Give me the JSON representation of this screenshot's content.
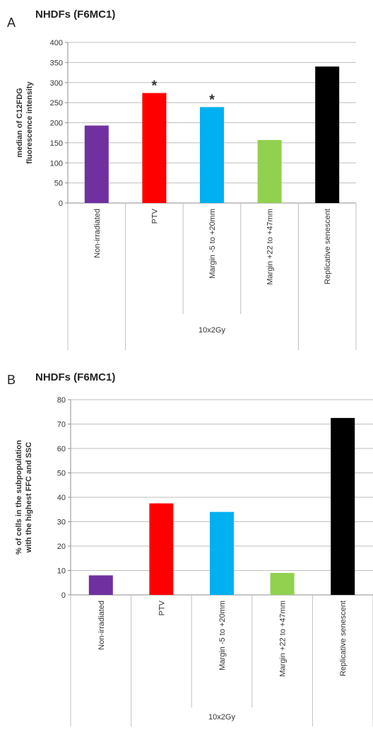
{
  "chart_data": [
    {
      "type": "bar",
      "panel_label": "A",
      "title": "NHDFs (F6MC1)",
      "ylabel": "median of C12FDG fluorescence intensity",
      "xlabel": "",
      "ylim": [
        0,
        400
      ],
      "yticks": [
        0,
        50,
        100,
        150,
        200,
        250,
        300,
        350,
        400
      ],
      "categories": [
        "Non-irradiated",
        "PTV",
        "Margin -5 to +20mm",
        "Margin +22 to +47mm",
        "Replicative senescent"
      ],
      "values": [
        193,
        274,
        239,
        157,
        340
      ],
      "colors": [
        "#7030a0",
        "#ff0000",
        "#00b0f0",
        "#92d050",
        "#000000"
      ],
      "significance": [
        "",
        "*",
        "*",
        "",
        ""
      ],
      "group_label": "10x2Gy",
      "grid": true
    },
    {
      "type": "bar",
      "panel_label": "B",
      "title": "NHDFs (F6MC1)",
      "ylabel": "% of cells in the subpopulation with the highest FFC and SSC",
      "xlabel": "",
      "ylim": [
        0,
        80
      ],
      "yticks": [
        0,
        10,
        20,
        30,
        40,
        50,
        60,
        70,
        80
      ],
      "categories": [
        "Non-irradiated",
        "PTV",
        "Margin -5 to +20mm",
        "Margin +22 to +47mm",
        "Replicative senescent"
      ],
      "values": [
        8,
        37.5,
        34,
        9,
        72.5
      ],
      "colors": [
        "#7030a0",
        "#ff0000",
        "#00b0f0",
        "#92d050",
        "#000000"
      ],
      "significance": [
        "",
        "",
        "",
        "",
        ""
      ],
      "group_label": "10x2Gy",
      "grid": true
    }
  ]
}
